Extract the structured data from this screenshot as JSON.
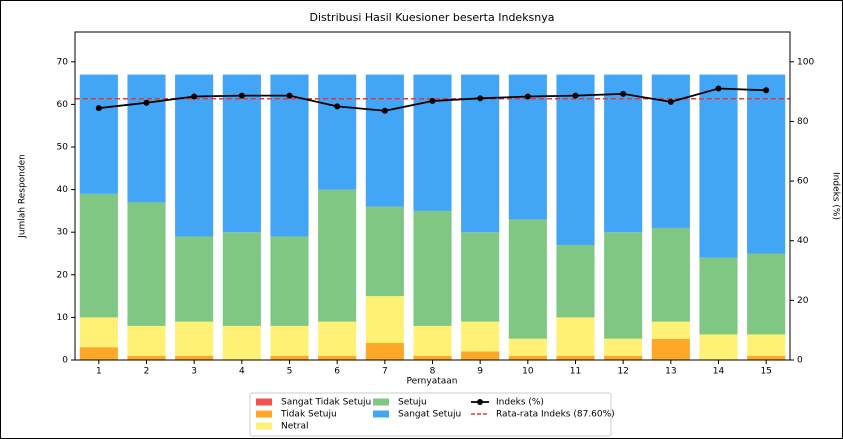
{
  "chart_data": {
    "type": "stacked-bar-line",
    "title": "Distribusi Hasil Kuesioner beserta Indeksnya",
    "x_label": "Pernyataan",
    "y_label": "Jumlah Responden",
    "y2_label": "Indeks (%)",
    "categories": [
      "1",
      "2",
      "3",
      "4",
      "5",
      "6",
      "7",
      "8",
      "9",
      "10",
      "11",
      "12",
      "13",
      "14",
      "15"
    ],
    "series": [
      {
        "name": "Sangat Tidak Setuju",
        "color": "#ef5350",
        "values": [
          0,
          0,
          0,
          0,
          0,
          0,
          0,
          0,
          0,
          0,
          0,
          0,
          0,
          0,
          0
        ]
      },
      {
        "name": "Tidak Setuju",
        "color": "#ffa726",
        "values": [
          3,
          1,
          1,
          0,
          1,
          1,
          4,
          1,
          2,
          1,
          1,
          1,
          5,
          0,
          1
        ]
      },
      {
        "name": "Netral",
        "color": "#fff176",
        "values": [
          7,
          7,
          8,
          8,
          7,
          8,
          11,
          7,
          7,
          4,
          9,
          4,
          4,
          6,
          5
        ]
      },
      {
        "name": "Setuju",
        "color": "#81c784",
        "values": [
          29,
          29,
          20,
          22,
          21,
          31,
          21,
          27,
          21,
          28,
          17,
          25,
          22,
          18,
          19
        ]
      },
      {
        "name": "Sangat Setuju",
        "color": "#42a5f5",
        "values": [
          28,
          30,
          38,
          37,
          38,
          27,
          31,
          32,
          37,
          34,
          40,
          37,
          36,
          43,
          42
        ]
      },
      {
        "name": "Indeks (%)",
        "color": "#000000",
        "axis": "y2",
        "type": "line",
        "values": [
          84.48,
          86.27,
          88.36,
          88.66,
          88.66,
          85.07,
          83.58,
          86.87,
          87.76,
          88.36,
          88.66,
          89.25,
          86.57,
          91.04,
          90.45
        ]
      }
    ],
    "mean_line": {
      "value": 87.6,
      "label": "Rata-rata Indeks (87.60%)",
      "color": "#e53935",
      "axis": "y2"
    },
    "ylim": [
      0,
      77
    ],
    "yticks": [
      0,
      10,
      20,
      30,
      40,
      50,
      60,
      70
    ],
    "y2lim": [
      0,
      110
    ],
    "y2ticks": [
      0,
      20,
      40,
      60,
      80,
      100
    ],
    "legend": "bottom"
  }
}
